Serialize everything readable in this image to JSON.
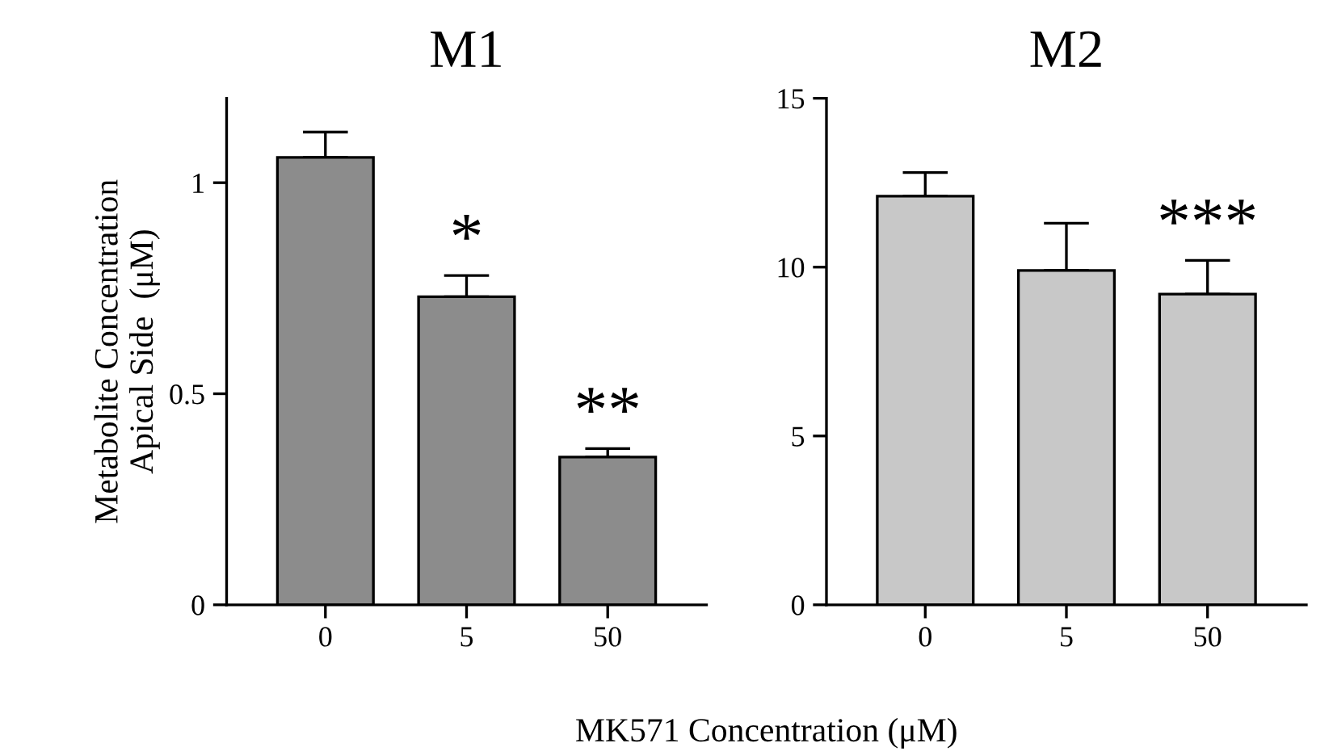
{
  "chart_data": [
    {
      "type": "bar",
      "title": "M1",
      "ylabel": "Metabolite Concentration\nApical Side  (μM)",
      "xlabel": "MK571 Concentration (μM)",
      "categories": [
        "0",
        "5",
        "50"
      ],
      "values": [
        1.06,
        0.73,
        0.35
      ],
      "errors": [
        [
          1.06,
          1.12
        ],
        [
          0.73,
          0.78
        ],
        [
          0.35,
          0.37
        ]
      ],
      "color": "#8c8c8c",
      "ylim": [
        0,
        1.2
      ],
      "yticks": [
        0,
        0.5,
        1
      ],
      "grid": false,
      "legend": false,
      "annotations": [
        "*",
        "**"
      ]
    },
    {
      "type": "bar",
      "title": "M2",
      "categories": [
        "0",
        "5",
        "50"
      ],
      "values": [
        12.1,
        9.9,
        9.2
      ],
      "errors": [
        [
          12.1,
          12.8
        ],
        [
          9.9,
          11.3
        ],
        [
          9.2,
          10.2
        ]
      ],
      "color": "#c8c8c8",
      "ylim": [
        0,
        15
      ],
      "yticks": [
        0,
        5,
        10,
        15
      ],
      "grid": false,
      "legend": false,
      "annotations": [
        "***"
      ]
    }
  ]
}
